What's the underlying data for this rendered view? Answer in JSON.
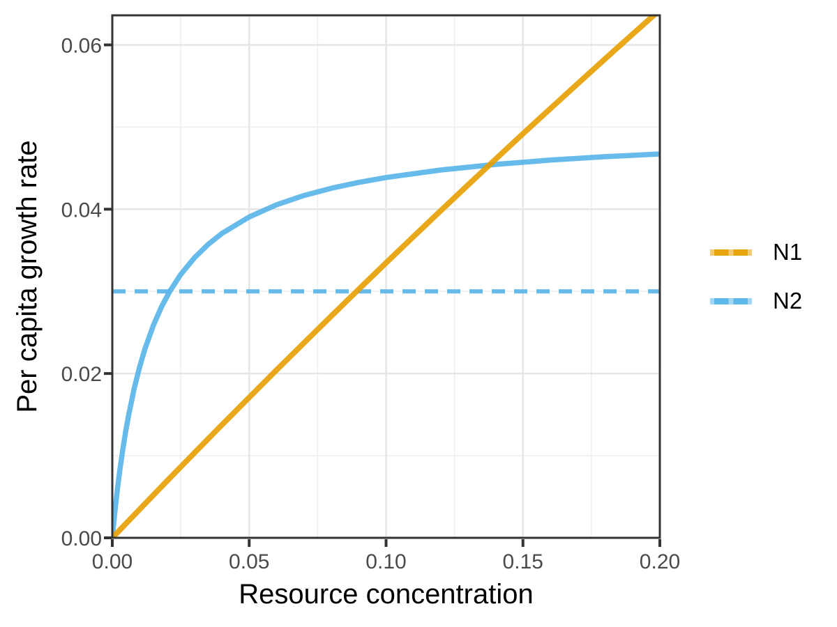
{
  "figure": {
    "background": "#FFFFFF",
    "panel_border_color": "#333333",
    "grid_major_color": "#E6E6E6",
    "grid_minor_color": "#F0F0F0",
    "tick_mark_color": "#333333",
    "tick_label_color": "#4a4a4a",
    "axis_title_color": "#000000"
  },
  "chart_data": {
    "type": "line",
    "title": "",
    "xlabel": "Resource concentration",
    "ylabel": "Per capita growth rate",
    "xlim": [
      0,
      0.2
    ],
    "ylim": [
      0,
      0.0636
    ],
    "grid": "on",
    "legend_position": "right",
    "x_ticks": {
      "values": [
        0,
        0.05,
        0.1,
        0.15,
        0.2
      ],
      "labels": [
        "0.00",
        "0.05",
        "0.10",
        "0.15",
        "0.20"
      ]
    },
    "y_ticks": {
      "values": [
        0,
        0.02,
        0.04,
        0.06
      ],
      "labels": [
        "0.00",
        "0.02",
        "0.04",
        "0.06"
      ]
    },
    "x_minor_ticks": [
      0.025,
      0.075,
      0.125,
      0.175
    ],
    "y_minor_ticks": [
      0.01,
      0.03,
      0.05
    ],
    "series": [
      {
        "name": "N2-threshold-dashed",
        "color": "#56B4E9",
        "linetype": "dashed",
        "width": 6,
        "points": [
          [
            0,
            0.03
          ],
          [
            0.2,
            0.03
          ]
        ]
      },
      {
        "name": "N2",
        "color": "#56B4E9",
        "linetype": "solid",
        "width": 7.5,
        "points": [
          [
            0,
            0
          ],
          [
            0.0005,
            0.001724
          ],
          [
            0.001,
            0.003333
          ],
          [
            0.0015,
            0.004839
          ],
          [
            0.002,
            0.00625
          ],
          [
            0.0025,
            0.007576
          ],
          [
            0.003,
            0.008824
          ],
          [
            0.004,
            0.011111
          ],
          [
            0.005,
            0.013158
          ],
          [
            0.006,
            0.015
          ],
          [
            0.008,
            0.018182
          ],
          [
            0.01,
            0.020833
          ],
          [
            0.012,
            0.023077
          ],
          [
            0.015,
            0.025862
          ],
          [
            0.018,
            0.028125
          ],
          [
            0.021,
            0.03
          ],
          [
            0.025,
            0.032051
          ],
          [
            0.03,
            0.034091
          ],
          [
            0.035,
            0.035714
          ],
          [
            0.04,
            0.037037
          ],
          [
            0.05,
            0.039063
          ],
          [
            0.06,
            0.040541
          ],
          [
            0.07,
            0.041667
          ],
          [
            0.08,
            0.042553
          ],
          [
            0.09,
            0.043269
          ],
          [
            0.1,
            0.04386
          ],
          [
            0.12,
            0.044776
          ],
          [
            0.14,
            0.045455
          ],
          [
            0.16,
            0.045977
          ],
          [
            0.18,
            0.046392
          ],
          [
            0.2,
            0.046729
          ]
        ]
      },
      {
        "name": "N1",
        "color": "#E69F00",
        "linetype": "solid",
        "width": 8,
        "points": [
          [
            0,
            0
          ],
          [
            0.01,
            0.003478
          ],
          [
            0.02,
            0.006926
          ],
          [
            0.03,
            0.010345
          ],
          [
            0.04,
            0.013734
          ],
          [
            0.05,
            0.017094
          ],
          [
            0.06,
            0.020426
          ],
          [
            0.07,
            0.023729
          ],
          [
            0.08,
            0.027004
          ],
          [
            0.09,
            0.030252
          ],
          [
            0.1,
            0.033473
          ],
          [
            0.11,
            0.036667
          ],
          [
            0.12,
            0.039834
          ],
          [
            0.13,
            0.042975
          ],
          [
            0.14,
            0.046091
          ],
          [
            0.15,
            0.04918
          ],
          [
            0.16,
            0.052245
          ],
          [
            0.17,
            0.055285
          ],
          [
            0.18,
            0.0583
          ],
          [
            0.19,
            0.06129
          ],
          [
            0.2,
            0.064257
          ]
        ]
      }
    ],
    "legend": {
      "entries": [
        {
          "label": "N1",
          "color": "#E69F00"
        },
        {
          "label": "N2",
          "color": "#56B4E9"
        }
      ]
    }
  }
}
